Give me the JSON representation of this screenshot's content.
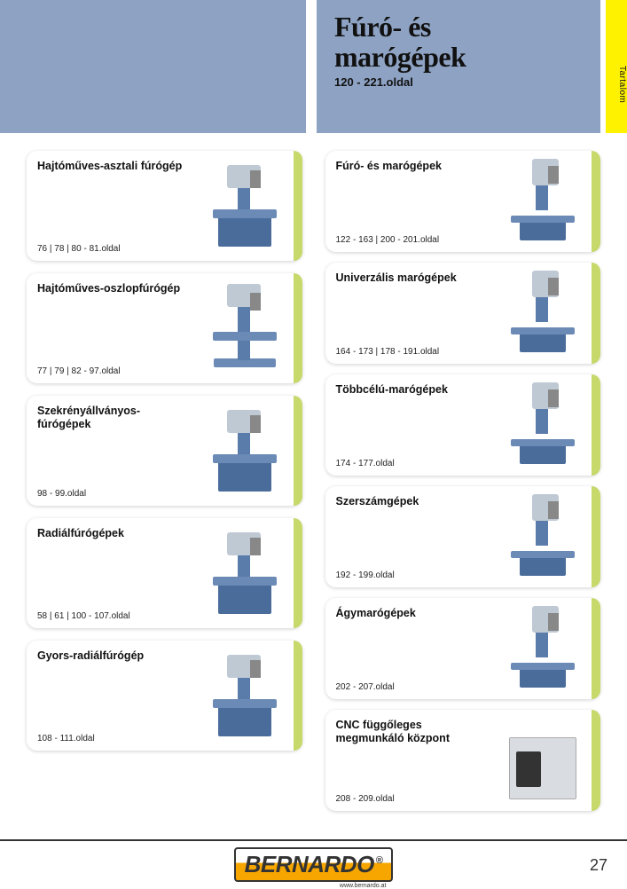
{
  "header": {
    "title_line1": "Fúró- és",
    "title_line2": "marógépek",
    "subtitle": "120 - 221.oldal",
    "tab_label": "Tartalom"
  },
  "colors": {
    "header_bg": "#8ea3c4",
    "card_bar": "#c6d96a",
    "tab_bg": "#fff200",
    "machine_blue": "#4a6c9b",
    "machine_grey": "#bfc9d4"
  },
  "left_cards": [
    {
      "title": "Hajtóműves-asztali fúrógép",
      "pages": "76 | 78 | 80 - 81.oldal",
      "mtype": "m-drill"
    },
    {
      "title": "Hajtóműves-oszlopfúrógép",
      "pages": "77 | 79 | 82 - 97.oldal",
      "mtype": "m-vert"
    },
    {
      "title": "Szekrényállványos-fúrógépek",
      "pages": "98 - 99.oldal",
      "mtype": "m-drill"
    },
    {
      "title": "Radiálfúrógépek",
      "pages": "58 | 61 | 100 - 107.oldal",
      "mtype": "m-drill"
    },
    {
      "title": "Gyors-radiálfúrógép",
      "pages": "108 - 111.oldal",
      "mtype": "m-drill"
    }
  ],
  "right_cards": [
    {
      "title": "Fúró- és marógépek",
      "pages": "122 - 163 | 200 - 201.oldal",
      "mtype": "m-mill"
    },
    {
      "title": "Univerzális marógépek",
      "pages": "164 - 173 | 178 - 191.oldal",
      "mtype": "m-mill"
    },
    {
      "title": "Többcélú-marógépek",
      "pages": "174 - 177.oldal",
      "mtype": "m-mill"
    },
    {
      "title": "Szerszámgépek",
      "pages": "192 - 199.oldal",
      "mtype": "m-mill"
    },
    {
      "title": "Ágymarógépek",
      "pages": "202 - 207.oldal",
      "mtype": "m-mill"
    },
    {
      "title": "CNC függőleges megmunkáló központ",
      "pages": "208 - 209.oldal",
      "mtype": "m-cnc"
    }
  ],
  "footer": {
    "brand": "BERNARDO",
    "reg": "®",
    "url": "www.bernardo.at",
    "page_number": "27"
  }
}
